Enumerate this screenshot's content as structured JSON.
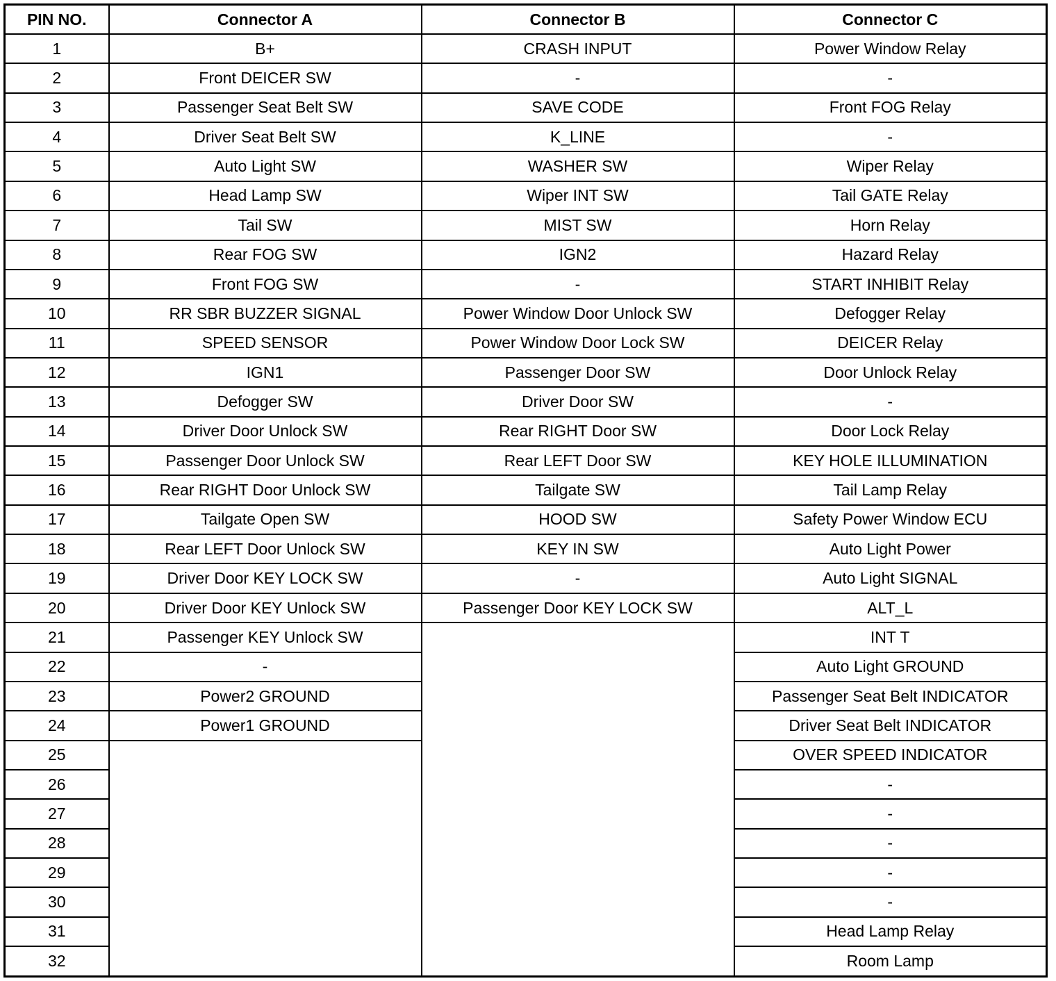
{
  "headers": {
    "pin": "PIN NO.",
    "a": "Connector A",
    "b": "Connector B",
    "c": "Connector C"
  },
  "rows": [
    {
      "pin": "1",
      "a": "B+",
      "b": "CRASH INPUT",
      "c": "Power Window Relay"
    },
    {
      "pin": "2",
      "a": "Front DEICER SW",
      "b": "-",
      "c": "-"
    },
    {
      "pin": "3",
      "a": "Passenger Seat Belt SW",
      "b": "SAVE CODE",
      "c": "Front FOG Relay"
    },
    {
      "pin": "4",
      "a": "Driver Seat Belt SW",
      "b": "K_LINE",
      "c": "-"
    },
    {
      "pin": "5",
      "a": "Auto Light SW",
      "b": "WASHER SW",
      "c": "Wiper Relay"
    },
    {
      "pin": "6",
      "a": "Head Lamp SW",
      "b": "Wiper INT SW",
      "c": "Tail GATE Relay"
    },
    {
      "pin": "7",
      "a": "Tail SW",
      "b": "MIST SW",
      "c": "Horn Relay"
    },
    {
      "pin": "8",
      "a": "Rear FOG SW",
      "b": "IGN2",
      "c": "Hazard Relay"
    },
    {
      "pin": "9",
      "a": "Front FOG SW",
      "b": "-",
      "c": "START INHIBIT Relay"
    },
    {
      "pin": "10",
      "a": "RR SBR BUZZER SIGNAL",
      "b": "Power Window Door Unlock SW",
      "c": "Defogger Relay"
    },
    {
      "pin": "11",
      "a": "SPEED SENSOR",
      "b": "Power Window Door Lock SW",
      "c": "DEICER Relay"
    },
    {
      "pin": "12",
      "a": "IGN1",
      "b": "Passenger Door SW",
      "c": "Door Unlock Relay"
    },
    {
      "pin": "13",
      "a": "Defogger SW",
      "b": "Driver Door SW",
      "c": "-"
    },
    {
      "pin": "14",
      "a": "Driver Door Unlock SW",
      "b": "Rear RIGHT Door SW",
      "c": "Door Lock Relay"
    },
    {
      "pin": "15",
      "a": "Passenger Door Unlock SW",
      "b": "Rear LEFT Door SW",
      "c": "KEY HOLE ILLUMINATION"
    },
    {
      "pin": "16",
      "a": "Rear RIGHT Door Unlock SW",
      "b": "Tailgate SW",
      "c": "Tail Lamp Relay"
    },
    {
      "pin": "17",
      "a": "Tailgate Open SW",
      "b": "HOOD SW",
      "c": "Safety Power Window ECU"
    },
    {
      "pin": "18",
      "a": "Rear LEFT Door Unlock SW",
      "b": "KEY IN SW",
      "c": "Auto Light Power"
    },
    {
      "pin": "19",
      "a": "Driver Door KEY LOCK SW",
      "b": "-",
      "c": "Auto Light SIGNAL"
    },
    {
      "pin": "20",
      "a": "Driver Door KEY Unlock SW",
      "b": "Passenger Door KEY LOCK SW",
      "c": "ALT_L"
    },
    {
      "pin": "21",
      "a": "Passenger KEY Unlock SW",
      "c": "INT T"
    },
    {
      "pin": "22",
      "a": "-",
      "c": "Auto Light GROUND"
    },
    {
      "pin": "23",
      "a": "Power2 GROUND",
      "c": "Passenger Seat Belt INDICATOR"
    },
    {
      "pin": "24",
      "a": "Power1 GROUND",
      "c": "Driver Seat Belt INDICATOR"
    },
    {
      "pin": "25",
      "c": "OVER SPEED INDICATOR"
    },
    {
      "pin": "26",
      "c": "-"
    },
    {
      "pin": "27",
      "c": "-"
    },
    {
      "pin": "28",
      "c": "-"
    },
    {
      "pin": "29",
      "c": "-"
    },
    {
      "pin": "30",
      "c": "-"
    },
    {
      "pin": "31",
      "c": "Head Lamp Relay"
    },
    {
      "pin": "32",
      "c": "Room Lamp"
    }
  ]
}
